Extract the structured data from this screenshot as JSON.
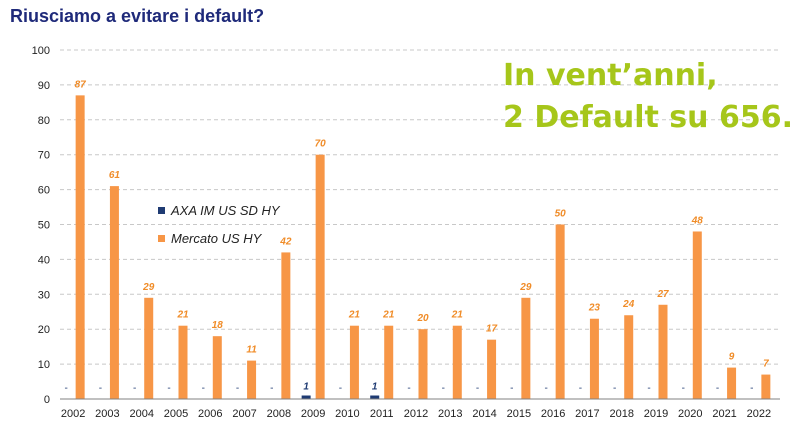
{
  "page": {
    "title": "Riusciamo a evitare i default?",
    "headline_line1": "In vent’anni,",
    "headline_line2": "2 Default su 656."
  },
  "colors": {
    "title": "#1f2a7a",
    "headline": "#a6c61a",
    "market_series": "#f79646",
    "axa_series": "#1f3b73",
    "grid": "#c8c8c8"
  },
  "chart_data": {
    "type": "bar",
    "categories": [
      "2002",
      "2003",
      "2004",
      "2005",
      "2006",
      "2007",
      "2008",
      "2009",
      "2010",
      "2011",
      "2012",
      "2013",
      "2014",
      "2015",
      "2016",
      "2017",
      "2018",
      "2019",
      "2020",
      "2021",
      "2022"
    ],
    "series": [
      {
        "name": "AXA IM US SD HY",
        "values": [
          0,
          0,
          0,
          0,
          0,
          0,
          0,
          1,
          0,
          1,
          0,
          0,
          0,
          0,
          0,
          0,
          0,
          0,
          0,
          0,
          0
        ],
        "labels": [
          "-",
          "-",
          "-",
          "-",
          "-",
          "-",
          "-",
          "1",
          "-",
          "1",
          "-",
          "-",
          "-",
          "-",
          "-",
          "-",
          "-",
          "-",
          "-",
          "-",
          "-"
        ]
      },
      {
        "name": "Mercato US HY",
        "values": [
          87,
          61,
          29,
          21,
          18,
          11,
          42,
          70,
          21,
          21,
          20,
          21,
          17,
          29,
          50,
          23,
          24,
          27,
          48,
          9,
          7
        ]
      }
    ],
    "yticks": [
      "0",
      "10",
      "20",
      "30",
      "40",
      "50",
      "60",
      "70",
      "80",
      "90",
      "100"
    ],
    "ylim": [
      0,
      100
    ],
    "grid": true,
    "legend_position": "left-middle"
  }
}
